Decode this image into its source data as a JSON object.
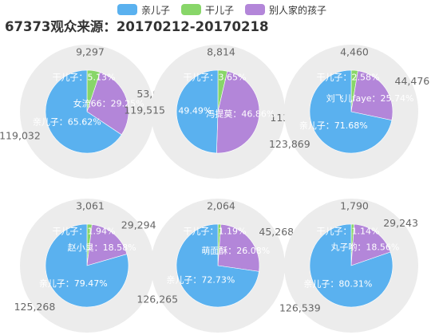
{
  "title": "67373观众来源：20170212-20170218",
  "legend": [
    {
      "name": "亲儿子",
      "color": "#5AB1EF"
    },
    {
      "name": "干儿子",
      "color": "#88D669"
    },
    {
      "name": "别人家的孩子",
      "color": "#B386D9"
    }
  ],
  "chart_data": [
    {
      "type": "pie",
      "slices": [
        {
          "series": "亲儿子",
          "label": "亲儿子",
          "value": 119032,
          "percent": "65.62%"
        },
        {
          "series": "干儿子",
          "label": "干儿子",
          "value": 9297,
          "percent": "5.13%"
        },
        {
          "series": "别人家的孩子",
          "label": "女流66",
          "value": 53057,
          "percent": "29.25%"
        }
      ]
    },
    {
      "type": "pie",
      "slices": [
        {
          "series": "亲儿子",
          "label": "",
          "value": 119515,
          "percent": "49.49%"
        },
        {
          "series": "干儿子",
          "label": "干儿子",
          "value": 8814,
          "percent": "3.65%"
        },
        {
          "series": "别人家的孩子",
          "label": "冯提莫",
          "value": 113171,
          "percent": "46.86%"
        }
      ]
    },
    {
      "type": "pie",
      "slices": [
        {
          "series": "亲儿子",
          "label": "亲儿子",
          "value": 123869,
          "percent": "71.68%"
        },
        {
          "series": "干儿子",
          "label": "干儿子",
          "value": 4460,
          "percent": "2.58%"
        },
        {
          "series": "别人家的孩子",
          "label": "刘飞儿faye",
          "value": 44476,
          "percent": "25.74%"
        }
      ]
    },
    {
      "type": "pie",
      "slices": [
        {
          "series": "亲儿子",
          "label": "亲儿子",
          "value": 125268,
          "percent": "79.47%"
        },
        {
          "series": "干儿子",
          "label": "干儿子",
          "value": 3061,
          "percent": "1.94%"
        },
        {
          "series": "别人家的孩子",
          "label": "赵小臭",
          "value": 29294,
          "percent": "18.58%"
        }
      ]
    },
    {
      "type": "pie",
      "slices": [
        {
          "series": "亲儿子",
          "label": "亲儿子",
          "value": 126265,
          "percent": "72.73%"
        },
        {
          "series": "干儿子",
          "label": "干儿子",
          "value": 2064,
          "percent": "1.19%"
        },
        {
          "series": "别人家的孩子",
          "label": "萌面酥",
          "value": 45268,
          "percent": "26.08%"
        }
      ]
    },
    {
      "type": "pie",
      "slices": [
        {
          "series": "亲儿子",
          "label": "亲儿子",
          "value": 126539,
          "percent": "80.31%"
        },
        {
          "series": "干儿子",
          "label": "干儿子",
          "value": 1790,
          "percent": "1.14%"
        },
        {
          "series": "别人家的孩子",
          "label": "丸子哟",
          "value": 29243,
          "percent": "18.56%"
        }
      ]
    }
  ]
}
